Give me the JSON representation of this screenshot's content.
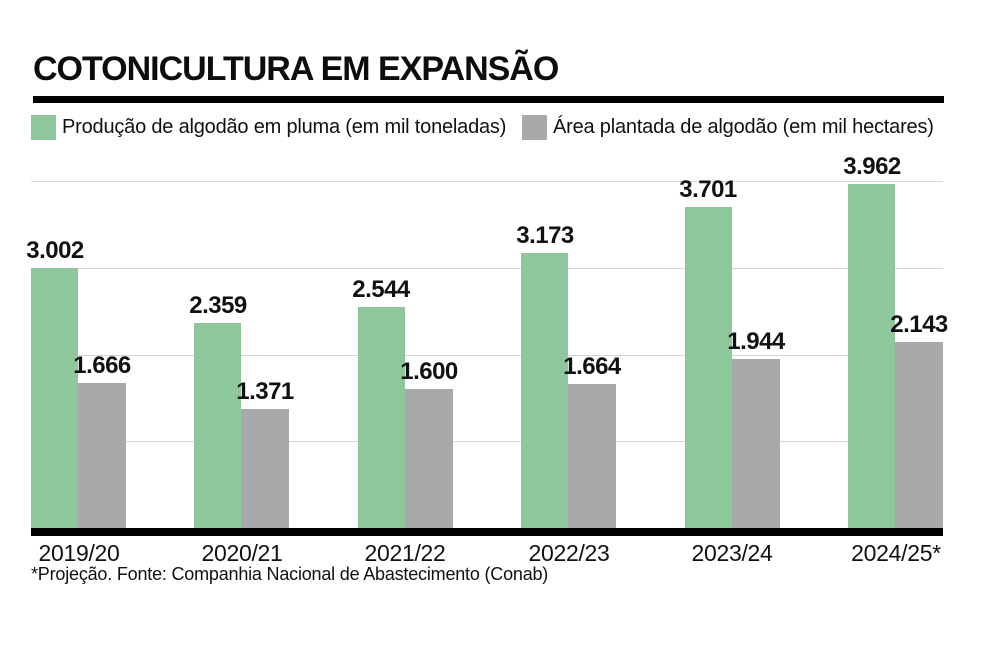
{
  "title": "COTONICULTURA EM EXPANSÃO",
  "legend": [
    {
      "label": "Produção de algodão em pluma (em mil toneladas)",
      "color": "#8EC79B"
    },
    {
      "label": "Área plantada de algodão (em mil hectares)",
      "color": "#A7A9AB"
    }
  ],
  "footer": "*Projeção. Fonte: Companhia Nacional de Abastecimento (Conab)",
  "colors": {
    "production_green": "#8EC79B",
    "area_gray": "#A7A9AB",
    "gridline": "#D6D6D6",
    "axis_black": "#000000",
    "text": "#111111"
  },
  "chart_data": {
    "type": "bar",
    "title": "COTONICULTURA EM EXPANSÃO",
    "categories": [
      "2019/20",
      "2020/21",
      "2021/22",
      "2022/23",
      "2023/24",
      "2024/25*"
    ],
    "series": [
      {
        "name": "Produção de algodão em pluma (em mil toneladas)",
        "color": "#8EC79B",
        "values": [
          3002,
          2359,
          2544,
          3173,
          3701,
          3962
        ],
        "labels": [
          "3.002",
          "2.359",
          "2.544",
          "3.173",
          "3.701",
          "3.962"
        ]
      },
      {
        "name": "Área plantada de algodão (em mil hectares)",
        "color": "#A7A9AB",
        "values": [
          1666,
          1371,
          1600,
          1664,
          1944,
          2143
        ],
        "labels": [
          "1.666",
          "1.371",
          "1.600",
          "1.664",
          "1.944",
          "2.143"
        ]
      }
    ],
    "xlabel": "",
    "ylabel": "",
    "ylim": [
      0,
      4000
    ],
    "gridlines": [
      1000,
      2000,
      3000,
      4000
    ],
    "grid": "horizontal",
    "legend_position": "top",
    "value_labels": "above-bars",
    "source_note": "*Projeção. Fonte: Companhia Nacional de Abastecimento (Conab)"
  }
}
